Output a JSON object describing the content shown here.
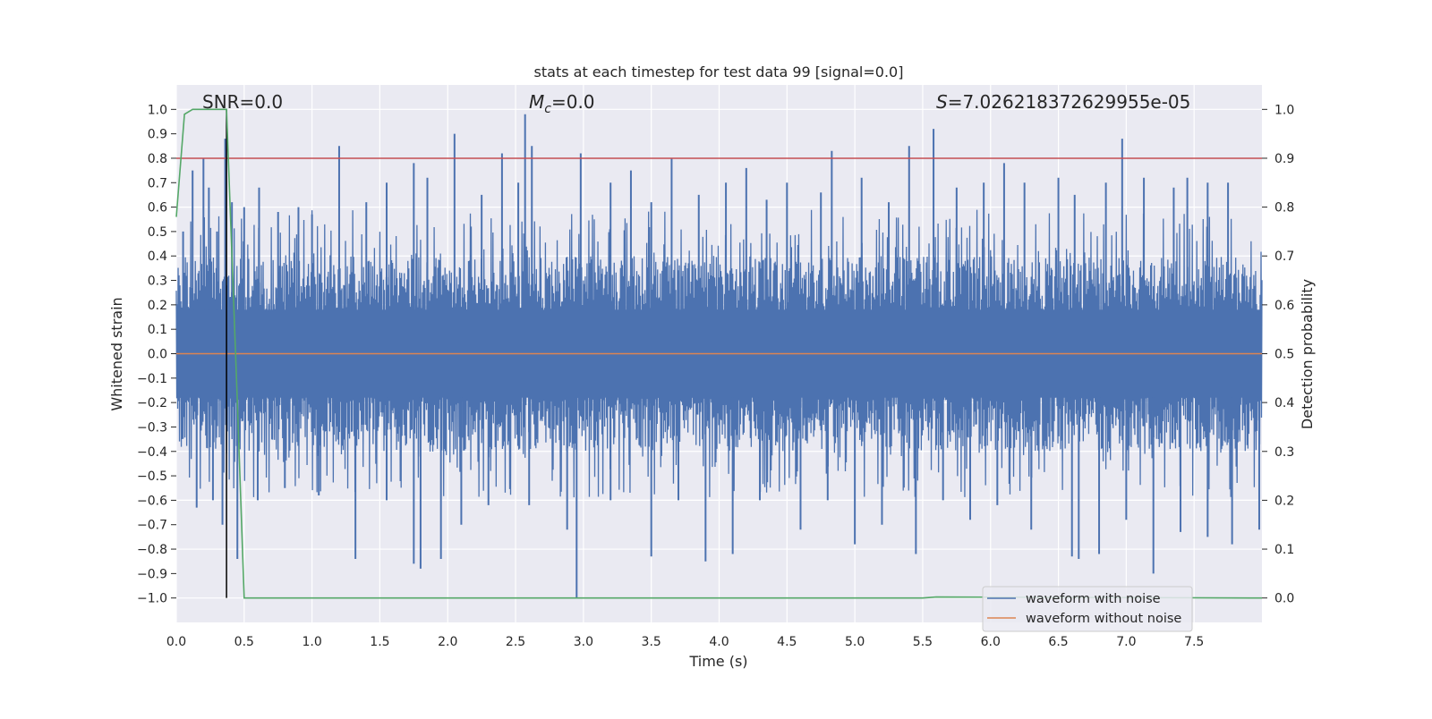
{
  "chart_data": {
    "type": "line",
    "title": "stats at each timestep for test data 99 [signal=0.0]",
    "xlabel": "Time (s)",
    "ylabel": "Whitened strain",
    "ylabel_right": "Detection probability",
    "xlim": [
      0.0,
      8.0
    ],
    "ylim": [
      -1.1,
      1.1
    ],
    "ylim_right": [
      -0.05,
      1.05
    ],
    "x_ticks": [
      "0.0",
      "0.5",
      "1.0",
      "1.5",
      "2.0",
      "2.5",
      "3.0",
      "3.5",
      "4.0",
      "4.5",
      "5.0",
      "5.5",
      "6.0",
      "6.5",
      "7.0",
      "7.5"
    ],
    "y_ticks": [
      "1.0",
      "0.9",
      "0.8",
      "0.7",
      "0.6",
      "0.5",
      "0.4",
      "0.3",
      "0.2",
      "0.1",
      "0.0",
      "−0.1",
      "−0.2",
      "−0.3",
      "−0.4",
      "−0.5",
      "−0.6",
      "−0.7",
      "−0.8",
      "−0.9",
      "−1.0"
    ],
    "y_ticks_right": [
      "1.0",
      "0.9",
      "0.8",
      "0.7",
      "0.6",
      "0.5",
      "0.4",
      "0.3",
      "0.2",
      "0.1",
      "0.0"
    ],
    "grid": true,
    "legend_position": "lower-right",
    "annotations": {
      "snr": "SNR=0.0",
      "mc_symbol": "M",
      "mc_subscript": "c",
      "mc_value": "=0.0",
      "s_symbol": "S",
      "s_value": "=7.026218372629955e-05"
    },
    "series": [
      {
        "name": "waveform with noise",
        "color": "#4c72b0",
        "kind": "noise",
        "typical_amplitude": 0.38,
        "peaks": [
          {
            "x": 0.05,
            "y": 0.5
          },
          {
            "x": 0.12,
            "y": 0.75
          },
          {
            "x": 0.2,
            "y": 0.8
          },
          {
            "x": 0.24,
            "y": 0.68
          },
          {
            "x": 0.3,
            "y": 0.5
          },
          {
            "x": 0.36,
            "y": 0.88
          },
          {
            "x": 0.41,
            "y": 0.62
          },
          {
            "x": 0.5,
            "y": 0.6
          },
          {
            "x": 0.61,
            "y": 0.68
          },
          {
            "x": 0.75,
            "y": 0.58
          },
          {
            "x": 0.9,
            "y": 0.6
          },
          {
            "x": 1.0,
            "y": 0.57
          },
          {
            "x": 1.2,
            "y": 0.85
          },
          {
            "x": 1.4,
            "y": 0.62
          },
          {
            "x": 1.55,
            "y": 0.7
          },
          {
            "x": 1.75,
            "y": 0.78
          },
          {
            "x": 1.85,
            "y": 0.72
          },
          {
            "x": 2.05,
            "y": 0.9
          },
          {
            "x": 2.25,
            "y": 0.65
          },
          {
            "x": 2.4,
            "y": 0.82
          },
          {
            "x": 2.52,
            "y": 0.7
          },
          {
            "x": 2.57,
            "y": 0.98
          },
          {
            "x": 2.62,
            "y": 0.85
          },
          {
            "x": 2.98,
            "y": 0.82
          },
          {
            "x": 3.2,
            "y": 0.7
          },
          {
            "x": 3.35,
            "y": 0.75
          },
          {
            "x": 3.5,
            "y": 0.62
          },
          {
            "x": 3.65,
            "y": 0.8
          },
          {
            "x": 3.85,
            "y": 0.65
          },
          {
            "x": 4.05,
            "y": 0.7
          },
          {
            "x": 4.2,
            "y": 0.76
          },
          {
            "x": 4.35,
            "y": 0.63
          },
          {
            "x": 4.5,
            "y": 0.7
          },
          {
            "x": 4.75,
            "y": 0.66
          },
          {
            "x": 4.83,
            "y": 0.83
          },
          {
            "x": 5.05,
            "y": 0.72
          },
          {
            "x": 5.25,
            "y": 0.62
          },
          {
            "x": 5.4,
            "y": 0.85
          },
          {
            "x": 5.58,
            "y": 0.92
          },
          {
            "x": 5.75,
            "y": 0.68
          },
          {
            "x": 5.95,
            "y": 0.7
          },
          {
            "x": 6.1,
            "y": 0.78
          },
          {
            "x": 6.25,
            "y": 0.7
          },
          {
            "x": 6.5,
            "y": 0.72
          },
          {
            "x": 6.62,
            "y": 0.65
          },
          {
            "x": 6.85,
            "y": 0.7
          },
          {
            "x": 6.97,
            "y": 0.88
          },
          {
            "x": 7.13,
            "y": 0.72
          },
          {
            "x": 7.35,
            "y": 0.68
          },
          {
            "x": 7.45,
            "y": 0.72
          },
          {
            "x": 7.6,
            "y": 0.7
          },
          {
            "x": 7.75,
            "y": 0.7
          },
          {
            "x": 0.15,
            "y": -0.63
          },
          {
            "x": 0.27,
            "y": -0.6
          },
          {
            "x": 0.34,
            "y": -0.7
          },
          {
            "x": 0.45,
            "y": -0.84
          },
          {
            "x": 0.6,
            "y": -0.6
          },
          {
            "x": 0.8,
            "y": -0.55
          },
          {
            "x": 1.05,
            "y": -0.58
          },
          {
            "x": 1.32,
            "y": -0.84
          },
          {
            "x": 1.55,
            "y": -0.6
          },
          {
            "x": 1.75,
            "y": -0.86
          },
          {
            "x": 1.8,
            "y": -0.88
          },
          {
            "x": 1.95,
            "y": -0.84
          },
          {
            "x": 2.1,
            "y": -0.7
          },
          {
            "x": 2.3,
            "y": -0.62
          },
          {
            "x": 2.6,
            "y": -0.62
          },
          {
            "x": 2.88,
            "y": -0.72
          },
          {
            "x": 2.95,
            "y": -1.0
          },
          {
            "x": 3.2,
            "y": -0.6
          },
          {
            "x": 3.5,
            "y": -0.83
          },
          {
            "x": 3.7,
            "y": -0.6
          },
          {
            "x": 3.9,
            "y": -0.85
          },
          {
            "x": 4.1,
            "y": -0.82
          },
          {
            "x": 4.3,
            "y": -0.6
          },
          {
            "x": 4.6,
            "y": -0.72
          },
          {
            "x": 4.8,
            "y": -0.6
          },
          {
            "x": 5.0,
            "y": -0.78
          },
          {
            "x": 5.2,
            "y": -0.7
          },
          {
            "x": 5.45,
            "y": -0.82
          },
          {
            "x": 5.65,
            "y": -0.6
          },
          {
            "x": 5.85,
            "y": -0.68
          },
          {
            "x": 6.05,
            "y": -0.62
          },
          {
            "x": 6.3,
            "y": -0.72
          },
          {
            "x": 6.6,
            "y": -0.83
          },
          {
            "x": 6.65,
            "y": -0.84
          },
          {
            "x": 6.8,
            "y": -0.82
          },
          {
            "x": 7.0,
            "y": -0.68
          },
          {
            "x": 7.2,
            "y": -0.9
          },
          {
            "x": 7.4,
            "y": -0.73
          },
          {
            "x": 7.6,
            "y": -0.75
          },
          {
            "x": 7.78,
            "y": -0.78
          },
          {
            "x": 7.98,
            "y": -0.72
          }
        ]
      },
      {
        "name": "waveform without noise",
        "color": "#dd8452",
        "kind": "line",
        "x": [
          0.0,
          8.0
        ],
        "y": [
          0.0,
          0.0
        ]
      },
      {
        "color": "#55a868",
        "kind": "line",
        "axis": "right",
        "x": [
          0.0,
          0.06,
          0.12,
          0.37,
          0.45,
          0.5,
          5.5,
          5.6,
          8.0
        ],
        "y": [
          0.78,
          0.99,
          1.0,
          1.0,
          0.4,
          0.0,
          0.0,
          0.002,
          0.0
        ]
      },
      {
        "color": "#c44e52",
        "kind": "hline",
        "axis": "right",
        "y": 0.9
      },
      {
        "color": "#000000",
        "kind": "vline",
        "x": 0.37,
        "y_range": [
          -1.0,
          1.0
        ]
      }
    ]
  }
}
